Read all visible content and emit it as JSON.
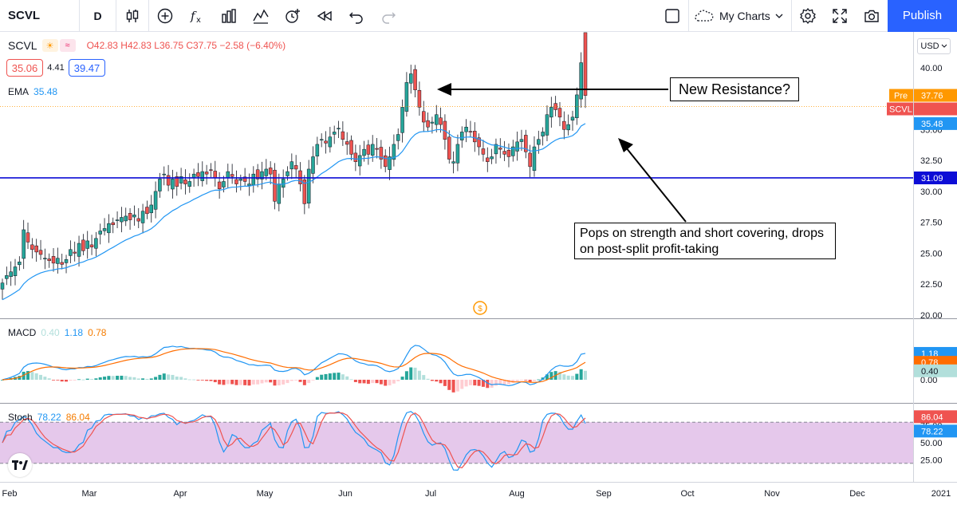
{
  "toolbar": {
    "symbol": "SCVL",
    "interval": "D",
    "my_charts_label": "My Charts",
    "publish_label": "Publish",
    "icons": [
      "bar-style-icon",
      "add-indicator-plus-icon",
      "fx-indicators-icon",
      "financials-icon",
      "compare-icon",
      "alert-clock-icon",
      "replay-icon",
      "undo-icon",
      "redo-icon",
      "layout-square-icon",
      "cloud-icon",
      "chevron-down-icon",
      "gear-icon",
      "fullscreen-icon",
      "camera-icon"
    ]
  },
  "legend": {
    "symbol": "SCVL",
    "ohlc": "O42.83 H42.83 L36.75 C37.75 −2.58 (−6.40%)",
    "bid": "35.06",
    "spread": "4.41",
    "ask": "39.47",
    "ema_label": "EMA",
    "ema_value": "35.48",
    "currency": "USD"
  },
  "macd_legend": {
    "name": "MACD",
    "hist": "0.40",
    "macd": "1.18",
    "signal": "0.78"
  },
  "stoch_legend": {
    "name": "Stoch",
    "k": "78.22",
    "d": "86.04"
  },
  "annotations": {
    "resistance": "New Resistance?",
    "comment": "Pops on strength and short covering, drops on post-split profit-taking"
  },
  "dividend_marker": "$",
  "colors": {
    "up": "#26a69a",
    "down": "#ef5350",
    "ema": "#2196f3",
    "hline": "#0d0dd6",
    "macd": "#2196f3",
    "signal": "#ff6d00",
    "stoch_k": "#2196f3",
    "stoch_d": "#ef5350",
    "stoch_band": "#e1bee7"
  },
  "chart_data": {
    "type": "candlestick",
    "symbol": "SCVL",
    "interval": "D",
    "x_axis_labels": [
      "Feb",
      "Mar",
      "Apr",
      "May",
      "Jun",
      "Jul",
      "Aug",
      "Sep",
      "Oct",
      "Nov",
      "Dec",
      "2021"
    ],
    "y_ticks": [
      "40.00",
      "37.50",
      "35.00",
      "32.50",
      "30.00",
      "27.50",
      "25.00",
      "22.50",
      "20.00"
    ],
    "price_ylim": [
      20,
      42.5
    ],
    "horizontal_line": {
      "value": 31.09,
      "label": "31.09"
    },
    "price_labels": [
      {
        "text": "Pre",
        "value": "37.76",
        "color": "#ff9800"
      },
      {
        "text": "SCVL",
        "value": "",
        "color": "#ef5350"
      },
      {
        "text": "",
        "value": "35.48",
        "color": "#2196f3"
      }
    ],
    "closes": [
      22.6,
      23.2,
      23.5,
      23.9,
      24.3,
      26.9,
      25.9,
      25.3,
      25.1,
      24.9,
      24.6,
      24.4,
      24.2,
      24.6,
      24.1,
      24.5,
      25.3,
      25.0,
      25.8,
      25.2,
      26.0,
      25.5,
      26.2,
      26.8,
      27.0,
      27.4,
      27.3,
      27.7,
      27.9,
      28.0,
      27.7,
      28.1,
      27.6,
      28.4,
      28.2,
      28.9,
      30.0,
      31.0,
      31.4,
      30.5,
      31.0,
      30.4,
      31.2,
      30.6,
      30.8,
      31.4,
      31.2,
      31.6,
      31.4,
      31.7,
      31.1,
      30.2,
      30.8,
      31.6,
      31.2,
      30.6,
      31.0,
      30.8,
      30.6,
      31.4,
      31.0,
      31.6,
      31.8,
      31.4,
      29.2,
      30.6,
      31.0,
      31.6,
      32.4,
      31.8,
      30.6,
      29.0,
      31.8,
      32.8,
      33.8,
      34.2,
      33.9,
      34.4,
      34.8,
      35.1,
      34.2,
      33.8,
      33.0,
      32.4,
      32.9,
      33.4,
      33.0,
      33.8,
      33.4,
      32.6,
      32.0,
      32.8,
      33.8,
      34.6,
      36.8,
      38.8,
      39.5,
      38.2,
      36.8,
      35.6,
      35.2,
      35.6,
      36.2,
      35.4,
      34.2,
      32.6,
      32.4,
      33.8,
      34.8,
      35.2,
      34.8,
      34.0,
      33.6,
      33.0,
      32.4,
      32.8,
      33.8,
      33.4,
      33.0,
      32.8,
      33.6,
      34.0,
      34.2,
      33.2,
      32.0,
      33.6,
      34.2,
      34.8,
      36.2,
      36.8,
      36.6,
      36.0,
      35.0,
      35.4,
      36.0,
      37.8,
      40.4,
      37.75
    ],
    "ema": {
      "period": 20,
      "last_value": 35.48
    },
    "macd": {
      "macd": 1.18,
      "signal": 0.78,
      "histogram": 0.4,
      "y_ticks": [
        "1.00",
        "0.00"
      ]
    },
    "stochastic": {
      "k": 78.22,
      "d": 86.04,
      "y_ticks": [
        "75.00",
        "50.00",
        "25.00"
      ],
      "band": [
        20,
        80
      ]
    }
  }
}
